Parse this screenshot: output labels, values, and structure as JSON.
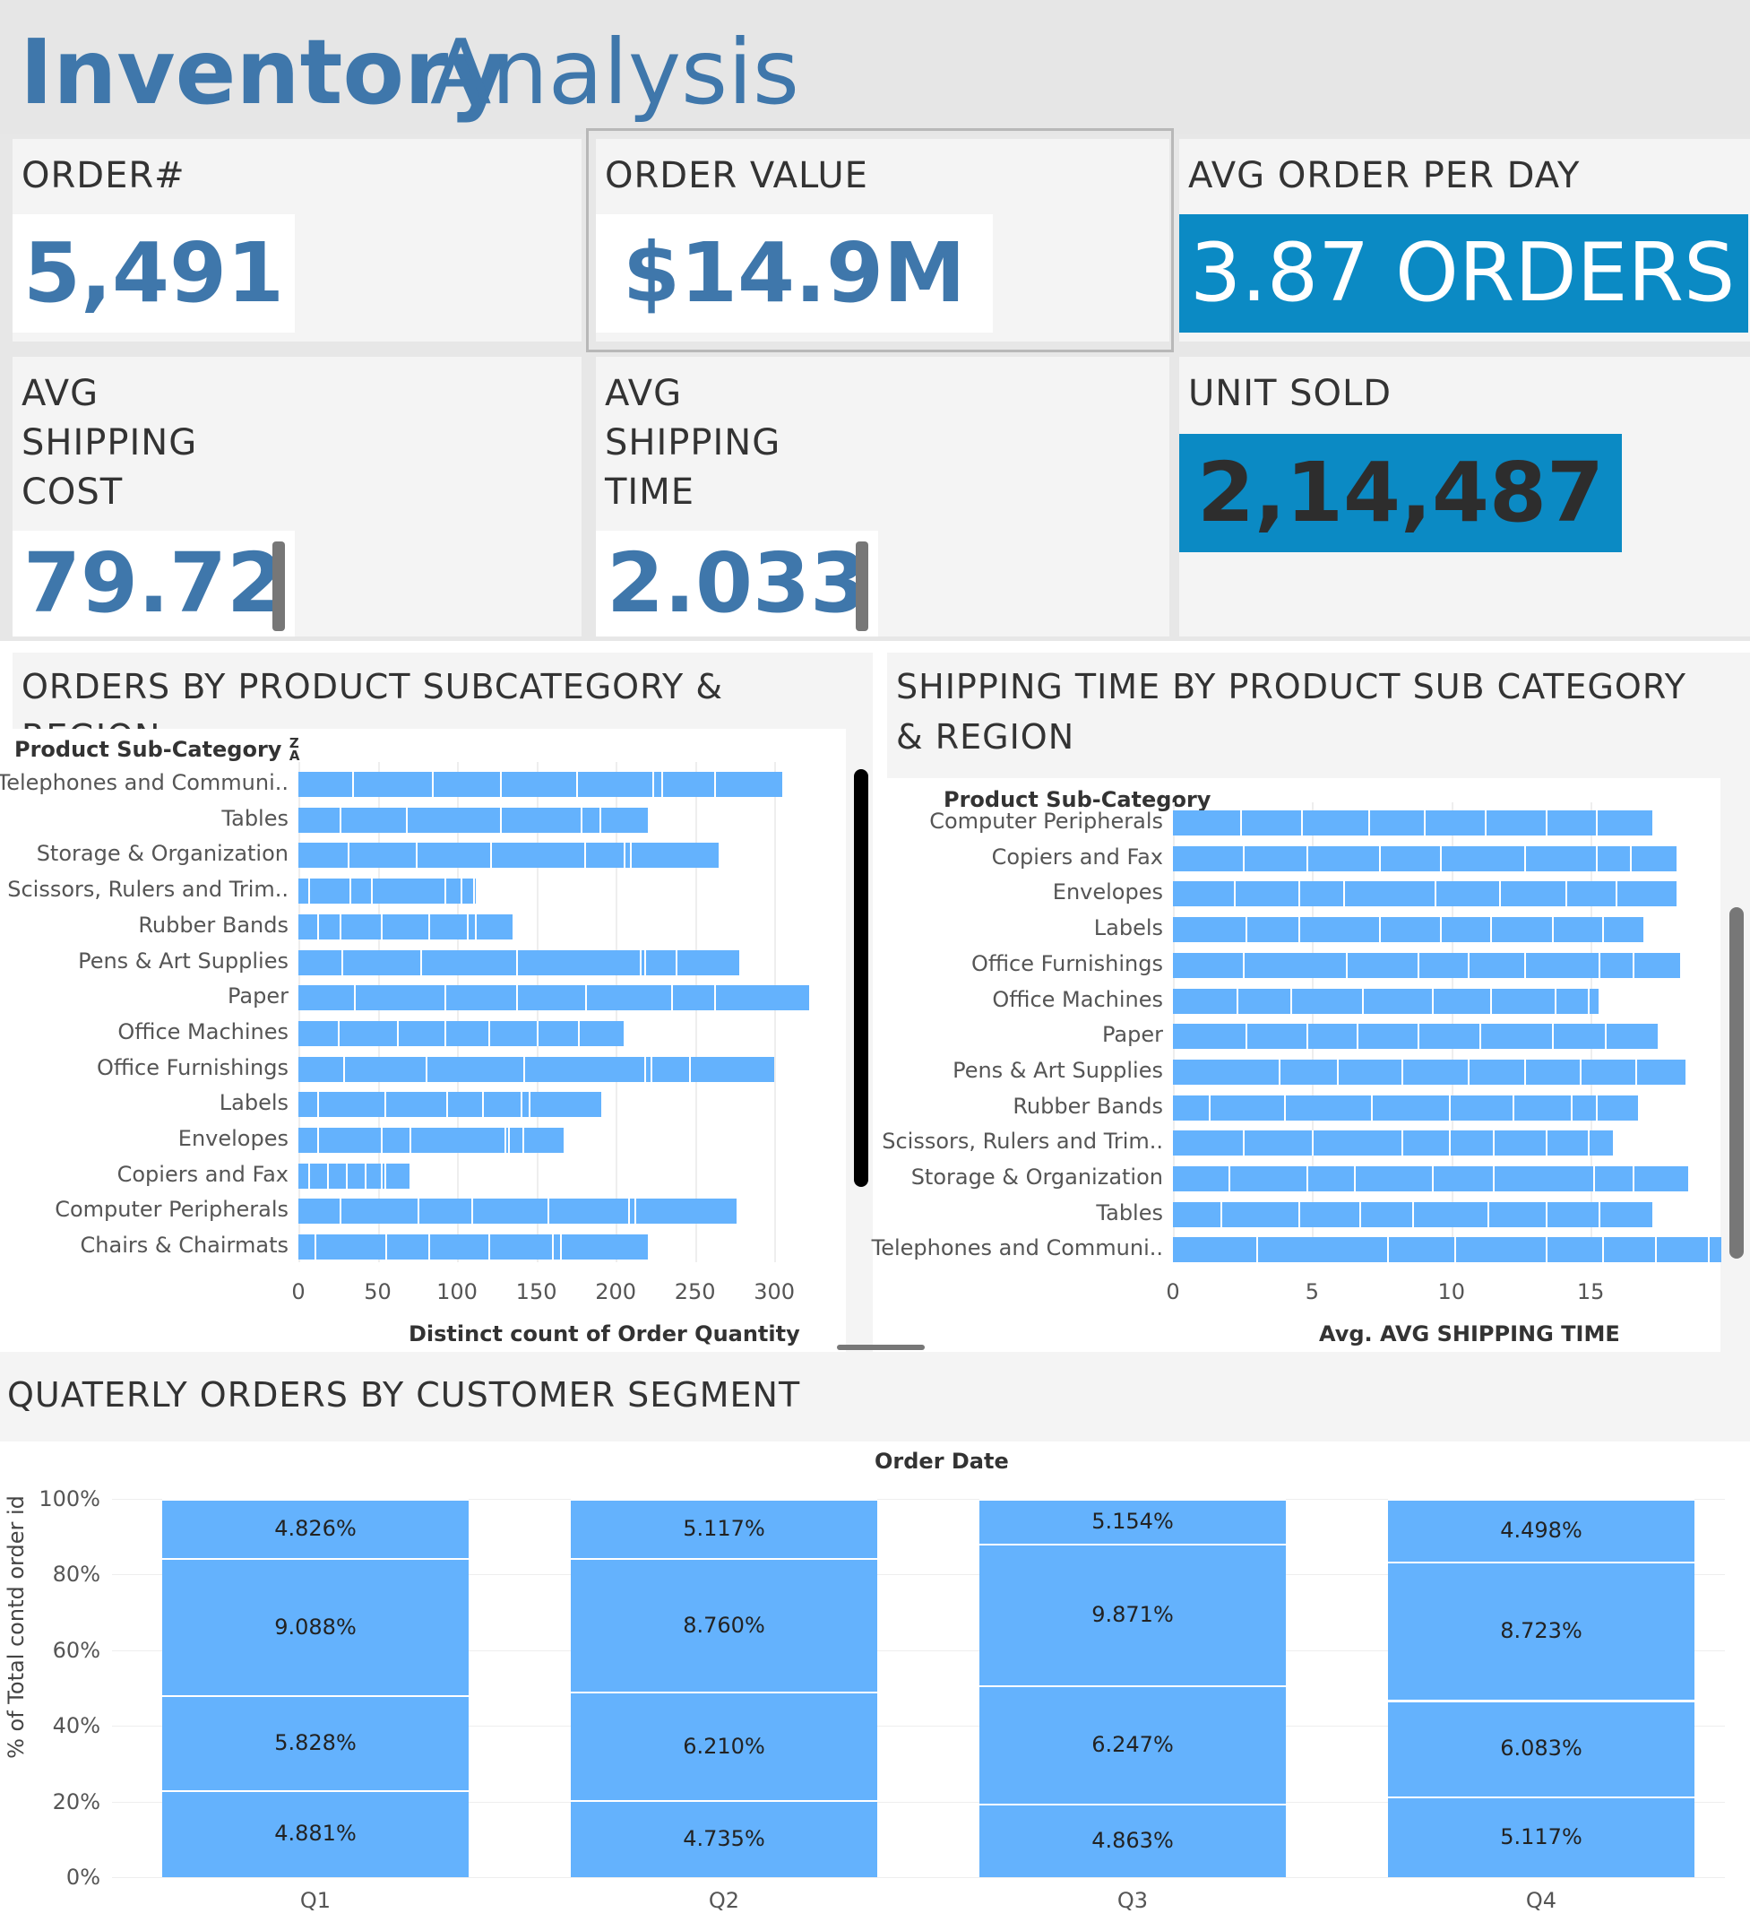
{
  "title": {
    "bold": "Inventory",
    "light": "Analysis"
  },
  "kpis": {
    "orders": {
      "label": "ORDER#",
      "value": "5,491"
    },
    "order_value": {
      "label": "ORDER VALUE",
      "value": "$14.9M"
    },
    "avg_order_per_day": {
      "label": "AVG ORDER PER DAY",
      "value": "3.87 ORDERS"
    },
    "avg_shipping_cost": {
      "label": "AVG\nSHIPPING\nCOST",
      "value": "79.72"
    },
    "avg_shipping_time": {
      "label": "AVG\nSHIPPING\nTIME",
      "value": "2.033"
    },
    "unit_sold": {
      "label": "UNIT SOLD",
      "value": "2,14,487"
    }
  },
  "colors": {
    "accent": "#3f77ab",
    "teal": "#0b8ac4",
    "bar": "#64b2fd"
  },
  "icons": {
    "sort": "sort-descending-icon"
  },
  "chart_data": [
    {
      "type": "bar",
      "orientation": "horizontal",
      "stacked": true,
      "title": "ORDERS BY PRODUCT SUBCATEGORY & REGION",
      "ylabel": "Product Sub-Category",
      "xlabel": "Distinct count of Order Quantity",
      "xlim": [
        0,
        340
      ],
      "xticks": [
        0,
        50,
        100,
        150,
        200,
        250,
        300
      ],
      "categories": [
        "Telephones and Communi..",
        "Tables",
        "Storage & Organization",
        "Scissors, Rulers and Trim..",
        "Rubber Bands",
        "Pens & Art Supplies",
        "Paper",
        "Office Machines",
        "Office Furnishings",
        "Labels",
        "Envelopes",
        "Copiers and Fax",
        "Computer Peripherals",
        "Chairs & Chairmats"
      ],
      "values": [
        305,
        220,
        265,
        112,
        135,
        278,
        322,
        205,
        300,
        191,
        167,
        70,
        276,
        220
      ],
      "segment_breaks": [
        [
          34,
          84,
          127,
          175,
          223,
          229,
          262
        ],
        [
          26,
          68,
          127,
          178,
          190
        ],
        [
          31,
          74,
          121,
          180,
          205,
          209
        ],
        [
          6,
          32,
          46,
          92,
          102,
          110
        ],
        [
          12,
          26,
          52,
          82,
          106,
          111
        ],
        [
          27,
          77,
          137,
          215,
          218,
          238
        ],
        [
          35,
          92,
          137,
          181,
          235,
          262
        ],
        [
          25,
          62,
          92,
          120,
          150,
          176
        ],
        [
          28,
          80,
          142,
          218,
          222,
          246
        ],
        [
          12,
          54,
          93,
          116,
          140,
          145
        ],
        [
          12,
          52,
          70,
          130,
          132,
          141
        ],
        [
          6,
          18,
          30,
          42,
          52,
          54
        ],
        [
          26,
          75,
          109,
          157,
          208,
          212
        ],
        [
          10,
          55,
          82,
          120,
          160,
          165
        ]
      ],
      "scrollbar": true
    },
    {
      "type": "bar",
      "orientation": "horizontal",
      "stacked": true,
      "title": "SHIPPING TIME BY PRODUCT SUB CATEGORY & REGION",
      "ylabel": "Product Sub-Category",
      "xlabel": "Avg. AVG SHIPPING TIME",
      "xlim": [
        0,
        19.5
      ],
      "xticks": [
        0,
        5,
        10,
        15
      ],
      "categories": [
        "Computer Peripherals",
        "Copiers and Fax",
        "Envelopes",
        "Labels",
        "Office Furnishings",
        "Office Machines",
        "Paper",
        "Pens & Art Supplies",
        "Rubber Bands",
        "Scissors, Rulers and Trim..",
        "Storage & Organization",
        "Tables",
        "Telephones and Communi.."
      ],
      "values": [
        17.2,
        18.1,
        18.1,
        16.9,
        18.2,
        15.3,
        17.4,
        18.4,
        16.7,
        15.8,
        18.5,
        17.2,
        19.7
      ],
      "segment_breaks": [
        [
          2.4,
          4.6,
          7.0,
          9.0,
          11.2,
          13.4,
          15.2
        ],
        [
          2.5,
          4.8,
          7.4,
          9.6,
          12.6,
          15.2,
          16.4
        ],
        [
          2.2,
          4.5,
          6.1,
          9.4,
          11.7,
          14.1,
          15.9
        ],
        [
          2.6,
          4.5,
          7.4,
          9.6,
          11.4,
          13.6,
          15.4
        ],
        [
          2.5,
          6.2,
          8.8,
          10.6,
          12.6,
          15.3,
          16.5
        ],
        [
          2.3,
          4.2,
          6.8,
          9.3,
          11.4,
          13.7,
          14.9
        ],
        [
          2.6,
          4.8,
          6.6,
          8.8,
          11.0,
          13.6,
          15.5
        ],
        [
          3.8,
          5.9,
          8.2,
          10.6,
          12.6,
          14.6,
          16.6
        ],
        [
          1.3,
          4.0,
          7.1,
          9.9,
          12.2,
          14.3,
          15.2
        ],
        [
          2.5,
          5.0,
          8.2,
          9.9,
          11.5,
          13.4,
          14.9
        ],
        [
          2.0,
          4.8,
          6.5,
          9.3,
          11.5,
          15.1,
          16.5
        ],
        [
          1.7,
          4.5,
          6.7,
          8.6,
          11.3,
          13.4,
          15.3
        ],
        [
          3.0,
          7.7,
          10.1,
          13.4,
          15.4,
          17.3,
          19.2
        ]
      ],
      "scrollbar": true
    },
    {
      "type": "bar",
      "stacked": true,
      "normalized": true,
      "title": "QUATERLY ORDERS BY CUSTOMER SEGMENT",
      "xlabel": "Order Date",
      "ylabel": "% of Total contd order id",
      "ylim": [
        0,
        100
      ],
      "yticks": [
        "0%",
        "20%",
        "40%",
        "60%",
        "80%",
        "100%"
      ],
      "categories": [
        "Q1",
        "Q2",
        "Q3",
        "Q4"
      ],
      "segment_heights": [
        [
          23.0,
          25.0,
          36.3,
          15.7
        ],
        [
          20.3,
          28.7,
          35.3,
          15.7
        ],
        [
          19.5,
          31.2,
          37.4,
          11.9
        ],
        [
          21.3,
          25.5,
          36.7,
          16.5
        ]
      ],
      "segment_labels": [
        [
          "4.881%",
          "5.828%",
          "9.088%",
          "4.826%"
        ],
        [
          "4.735%",
          "6.210%",
          "8.760%",
          "5.117%"
        ],
        [
          "4.863%",
          "6.247%",
          "9.871%",
          "5.154%"
        ],
        [
          "5.117%",
          "6.083%",
          "8.723%",
          "4.498%"
        ]
      ]
    }
  ]
}
